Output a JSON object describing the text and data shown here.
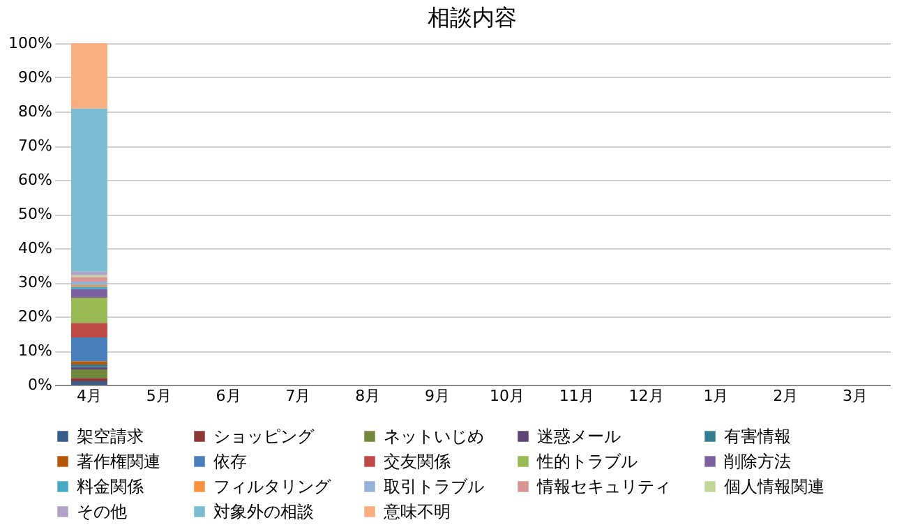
{
  "chart_data": {
    "type": "bar",
    "title": "相談内容",
    "stacked": true,
    "categories": [
      "4月",
      "5月",
      "6月",
      "7月",
      "8月",
      "9月",
      "10月",
      "11月",
      "12月",
      "1月",
      "2月",
      "3月"
    ],
    "ylim": [
      0,
      100
    ],
    "yticks": [
      {
        "value": 0,
        "label": "0%"
      },
      {
        "value": 10,
        "label": "10%"
      },
      {
        "value": 20,
        "label": "20%"
      },
      {
        "value": 30,
        "label": "30%"
      },
      {
        "value": 40,
        "label": "40%"
      },
      {
        "value": 50,
        "label": "50%"
      },
      {
        "value": 60,
        "label": "60%"
      },
      {
        "value": 70,
        "label": "70%"
      },
      {
        "value": 80,
        "label": "80%"
      },
      {
        "value": 90,
        "label": "90%"
      },
      {
        "value": 100,
        "label": "100%"
      }
    ],
    "grid": "y",
    "legend": "bottom",
    "series": [
      {
        "name": "架空請求",
        "color": "#385d8a",
        "values": [
          1,
          null,
          null,
          null,
          null,
          null,
          null,
          null,
          null,
          null,
          null,
          null
        ]
      },
      {
        "name": "ショッピング",
        "color": "#8c3836",
        "values": [
          1,
          null,
          null,
          null,
          null,
          null,
          null,
          null,
          null,
          null,
          null,
          null
        ]
      },
      {
        "name": "ネットいじめ",
        "color": "#71893f",
        "values": [
          2.5,
          null,
          null,
          null,
          null,
          null,
          null,
          null,
          null,
          null,
          null,
          null
        ]
      },
      {
        "name": "迷惑メール",
        "color": "#5c4776",
        "values": [
          0.7,
          null,
          null,
          null,
          null,
          null,
          null,
          null,
          null,
          null,
          null,
          null
        ]
      },
      {
        "name": "有害情報",
        "color": "#357d91",
        "values": [
          0.7,
          null,
          null,
          null,
          null,
          null,
          null,
          null,
          null,
          null,
          null,
          null
        ]
      },
      {
        "name": "著作権関連",
        "color": "#b65708",
        "values": [
          1,
          null,
          null,
          null,
          null,
          null,
          null,
          null,
          null,
          null,
          null,
          null
        ]
      },
      {
        "name": "依存",
        "color": "#4a7ebb",
        "values": [
          7,
          null,
          null,
          null,
          null,
          null,
          null,
          null,
          null,
          null,
          null,
          null
        ]
      },
      {
        "name": "交友関係",
        "color": "#be4b48",
        "values": [
          4.2,
          null,
          null,
          null,
          null,
          null,
          null,
          null,
          null,
          null,
          null,
          null
        ]
      },
      {
        "name": "性的トラブル",
        "color": "#98b954",
        "values": [
          7.4,
          null,
          null,
          null,
          null,
          null,
          null,
          null,
          null,
          null,
          null,
          null
        ]
      },
      {
        "name": "削除方法",
        "color": "#7d60a0",
        "values": [
          2.5,
          null,
          null,
          null,
          null,
          null,
          null,
          null,
          null,
          null,
          null,
          null
        ]
      },
      {
        "name": "料金関係",
        "color": "#46aac5",
        "values": [
          0.7,
          null,
          null,
          null,
          null,
          null,
          null,
          null,
          null,
          null,
          null,
          null
        ]
      },
      {
        "name": "フィルタリング",
        "color": "#f69240",
        "values": [
          0.5,
          null,
          null,
          null,
          null,
          null,
          null,
          null,
          null,
          null,
          null,
          null
        ]
      },
      {
        "name": "取引トラブル",
        "color": "#95b3d7",
        "values": [
          1,
          null,
          null,
          null,
          null,
          null,
          null,
          null,
          null,
          null,
          null,
          null
        ]
      },
      {
        "name": "情報セキュリティ",
        "color": "#d99694",
        "values": [
          1.4,
          null,
          null,
          null,
          null,
          null,
          null,
          null,
          null,
          null,
          null,
          null
        ]
      },
      {
        "name": "個人情報関連",
        "color": "#c3d69b",
        "values": [
          0.5,
          null,
          null,
          null,
          null,
          null,
          null,
          null,
          null,
          null,
          null,
          null
        ]
      },
      {
        "name": "その他",
        "color": "#b3a2c7",
        "values": [
          1,
          null,
          null,
          null,
          null,
          null,
          null,
          null,
          null,
          null,
          null,
          null
        ]
      },
      {
        "name": "対象外の相談",
        "color": "#7cbcd1",
        "values": [
          47.8,
          null,
          null,
          null,
          null,
          null,
          null,
          null,
          null,
          null,
          null,
          null
        ]
      },
      {
        "name": "意味不明",
        "color": "#f9ae80",
        "values": [
          19.1,
          null,
          null,
          null,
          null,
          null,
          null,
          null,
          null,
          null,
          null,
          null
        ]
      }
    ]
  }
}
